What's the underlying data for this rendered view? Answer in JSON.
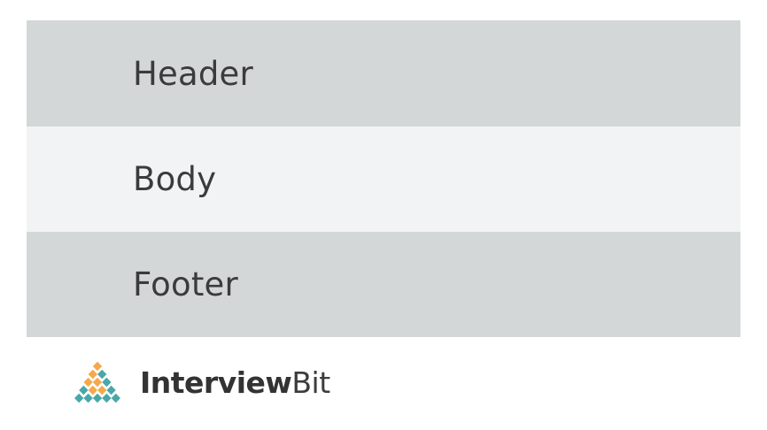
{
  "sections": {
    "header": "Header",
    "body": "Body",
    "footer": "Footer"
  },
  "logo": {
    "brand_bold": "Interview",
    "brand_light": "Bit",
    "icon": "diamond-grid-icon",
    "colors": {
      "teal": "#4aa7a8",
      "orange": "#f5a94b",
      "text": "#333333"
    }
  },
  "colors": {
    "band_dark": "#d4d7d8",
    "band_light": "#f2f3f4",
    "label_text": "#3b3b3b"
  }
}
